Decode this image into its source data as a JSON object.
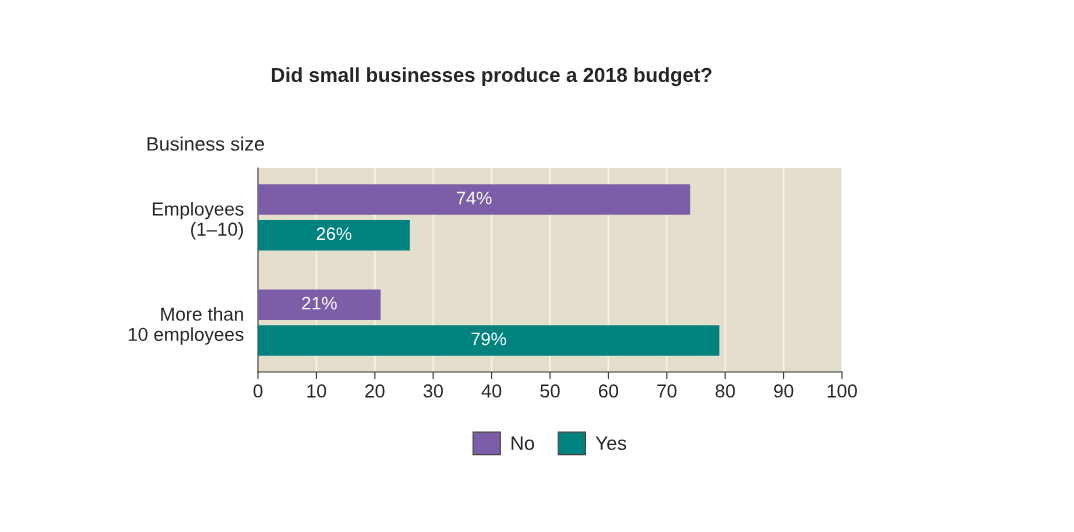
{
  "chart_data": {
    "type": "bar",
    "orientation": "horizontal",
    "title": "Did small businesses produce a 2018 budget?",
    "ylabel": "Business size",
    "categories": [
      "Employees\n(1–10)",
      "More than\n10 employees"
    ],
    "series": [
      {
        "name": "No",
        "color": "#7b5ea7",
        "values": [
          74,
          21
        ],
        "value_labels": [
          "74%",
          "21%"
        ]
      },
      {
        "name": "Yes",
        "color": "#00827f",
        "values": [
          26,
          79
        ],
        "value_labels": [
          "26%",
          "79%"
        ]
      }
    ],
    "xlim": [
      0,
      100
    ],
    "xticks": [
      0,
      10,
      20,
      30,
      40,
      50,
      60,
      70,
      80,
      90,
      100
    ],
    "grid": "x",
    "legend": "bottom"
  }
}
